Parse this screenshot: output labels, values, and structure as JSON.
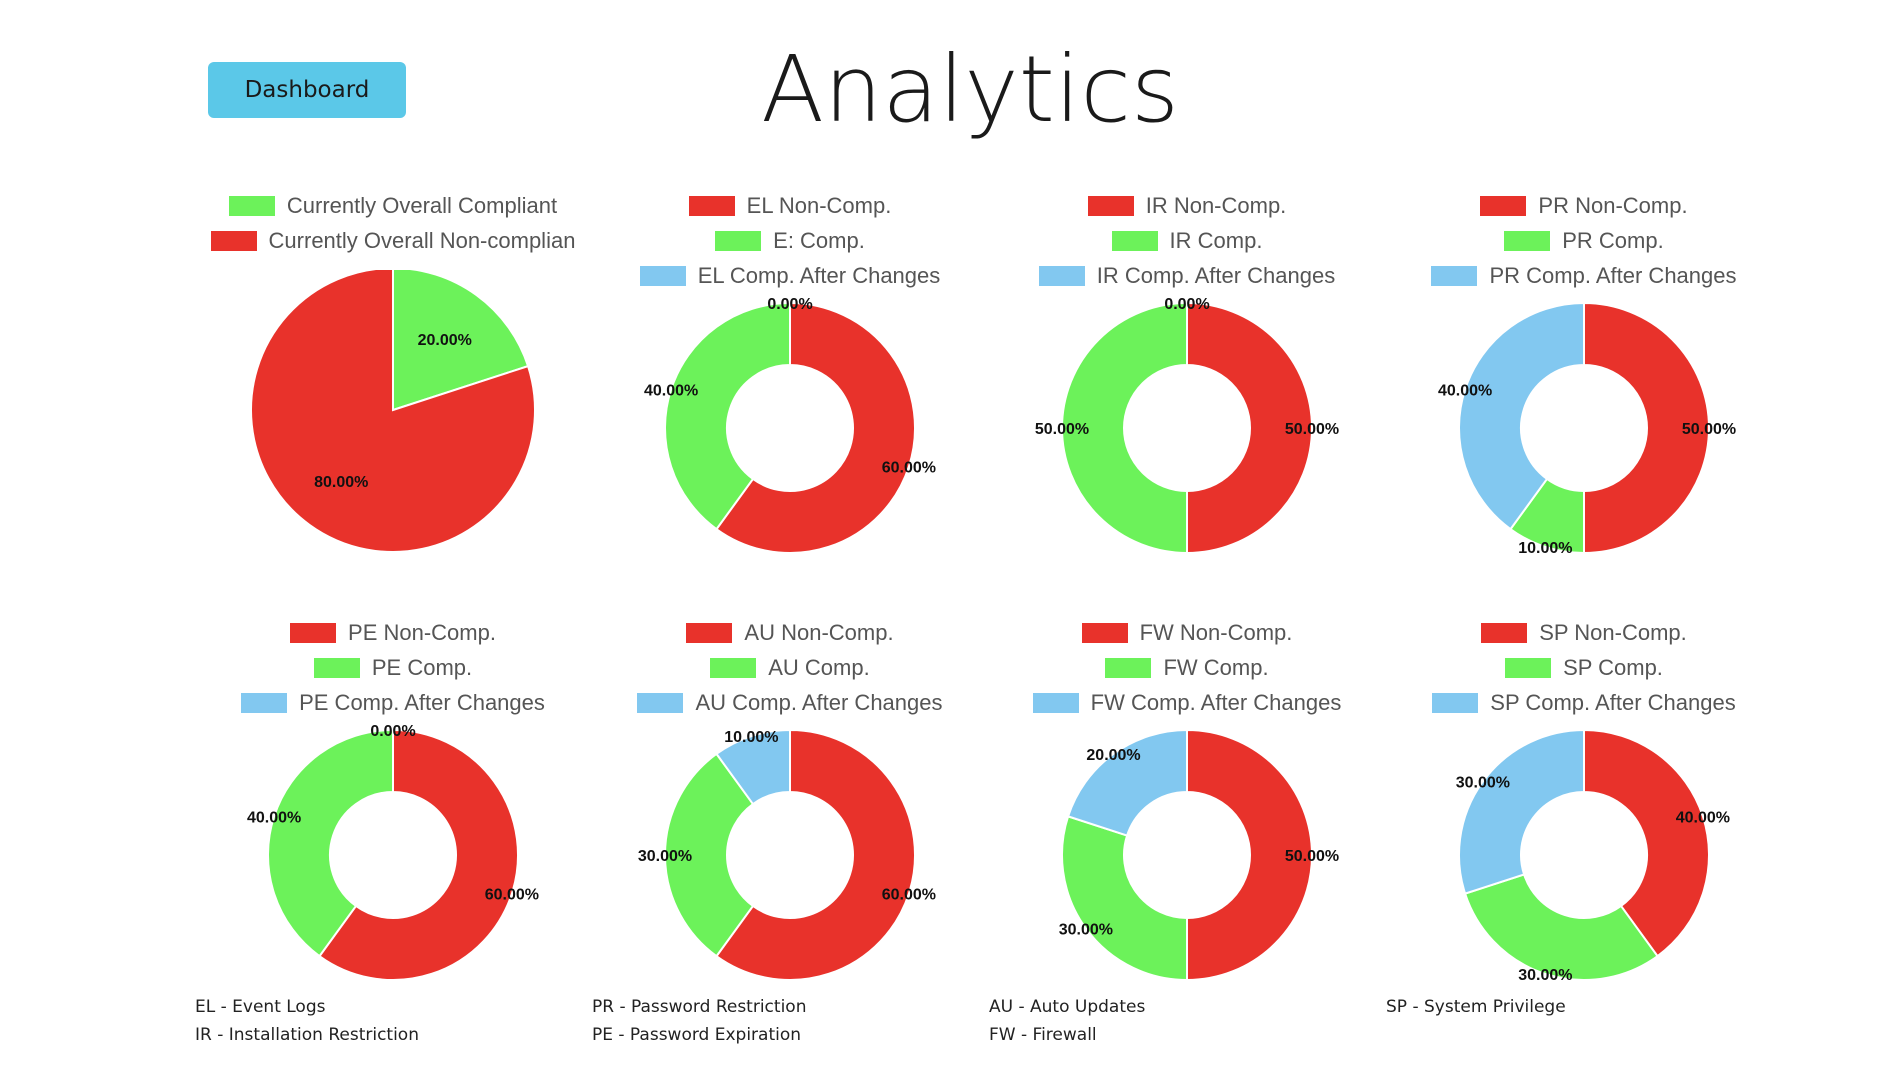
{
  "header": {
    "dashboard_label": "Dashboard",
    "title": "Analytics"
  },
  "colors": {
    "red": "#e8322b",
    "green": "#6cf25a",
    "blue": "#82c8f0"
  },
  "chart_data": [
    {
      "type": "pie",
      "legend": [
        "Currently Overall Compliant",
        "Currently Overall Non-complian"
      ],
      "legend_colors": [
        "#6cf25a",
        "#e8322b"
      ],
      "slices": [
        {
          "label": "Currently Overall Compliant",
          "value": 20,
          "color": "#6cf25a",
          "text": "20.00%"
        },
        {
          "label": "Currently Overall Non-complian",
          "value": 80,
          "color": "#e8322b",
          "text": "80.00%"
        }
      ]
    },
    {
      "type": "doughnut",
      "legend": [
        "EL Non-Comp.",
        "E: Comp.",
        "EL Comp. After Changes"
      ],
      "legend_colors": [
        "#e8322b",
        "#6cf25a",
        "#82c8f0"
      ],
      "slices": [
        {
          "label": "EL Non-Comp.",
          "value": 60,
          "color": "#e8322b",
          "text": "60.00%"
        },
        {
          "label": "E: Comp.",
          "value": 40,
          "color": "#6cf25a",
          "text": "40.00%"
        },
        {
          "label": "EL Comp. After Changes",
          "value": 0,
          "color": "#82c8f0",
          "text": "0.00%"
        }
      ]
    },
    {
      "type": "doughnut",
      "legend": [
        "IR Non-Comp.",
        "IR Comp.",
        "IR Comp. After Changes"
      ],
      "legend_colors": [
        "#e8322b",
        "#6cf25a",
        "#82c8f0"
      ],
      "slices": [
        {
          "label": "IR Non-Comp.",
          "value": 50,
          "color": "#e8322b",
          "text": "50.00%"
        },
        {
          "label": "IR Comp.",
          "value": 50,
          "color": "#6cf25a",
          "text": "50.00%"
        },
        {
          "label": "IR Comp. After Changes",
          "value": 0,
          "color": "#82c8f0",
          "text": "0.00%"
        }
      ]
    },
    {
      "type": "doughnut",
      "legend": [
        "PR Non-Comp.",
        "PR Comp.",
        "PR Comp. After Changes"
      ],
      "legend_colors": [
        "#e8322b",
        "#6cf25a",
        "#82c8f0"
      ],
      "slices": [
        {
          "label": "PR Non-Comp.",
          "value": 50,
          "color": "#e8322b",
          "text": "50.00%"
        },
        {
          "label": "PR Comp.",
          "value": 10,
          "color": "#6cf25a",
          "text": "10.00%"
        },
        {
          "label": "PR Comp. After Changes",
          "value": 40,
          "color": "#82c8f0",
          "text": "40.00%"
        }
      ]
    },
    {
      "type": "doughnut",
      "legend": [
        "PE Non-Comp.",
        "PE Comp.",
        "PE Comp. After Changes"
      ],
      "legend_colors": [
        "#e8322b",
        "#6cf25a",
        "#82c8f0"
      ],
      "slices": [
        {
          "label": "PE Non-Comp.",
          "value": 60,
          "color": "#e8322b",
          "text": "60.00%"
        },
        {
          "label": "PE Comp.",
          "value": 40,
          "color": "#6cf25a",
          "text": "40.00%"
        },
        {
          "label": "PE Comp. After Changes",
          "value": 0,
          "color": "#82c8f0",
          "text": "0.00%"
        }
      ]
    },
    {
      "type": "doughnut",
      "legend": [
        "AU Non-Comp.",
        "AU Comp.",
        "AU Comp. After Changes"
      ],
      "legend_colors": [
        "#e8322b",
        "#6cf25a",
        "#82c8f0"
      ],
      "slices": [
        {
          "label": "AU Non-Comp.",
          "value": 60,
          "color": "#e8322b",
          "text": "60.00%"
        },
        {
          "label": "AU Comp.",
          "value": 30,
          "color": "#6cf25a",
          "text": "30.00%"
        },
        {
          "label": "AU Comp. After Changes",
          "value": 10,
          "color": "#82c8f0",
          "text": "10.00%"
        }
      ]
    },
    {
      "type": "doughnut",
      "legend": [
        "FW Non-Comp.",
        "FW Comp.",
        "FW Comp. After Changes"
      ],
      "legend_colors": [
        "#e8322b",
        "#6cf25a",
        "#82c8f0"
      ],
      "slices": [
        {
          "label": "FW Non-Comp.",
          "value": 50,
          "color": "#e8322b",
          "text": "50.00%"
        },
        {
          "label": "FW Comp.",
          "value": 30,
          "color": "#6cf25a",
          "text": "30.00%"
        },
        {
          "label": "FW Comp. After Changes",
          "value": 20,
          "color": "#82c8f0",
          "text": "20.00%"
        }
      ]
    },
    {
      "type": "doughnut",
      "legend": [
        "SP Non-Comp.",
        "SP Comp.",
        "SP Comp. After Changes"
      ],
      "legend_colors": [
        "#e8322b",
        "#6cf25a",
        "#82c8f0"
      ],
      "slices": [
        {
          "label": "SP Non-Comp.",
          "value": 40,
          "color": "#e8322b",
          "text": "40.00%"
        },
        {
          "label": "SP Comp.",
          "value": 30,
          "color": "#6cf25a",
          "text": "30.00%"
        },
        {
          "label": "SP Comp. After Changes",
          "value": 30,
          "color": "#82c8f0",
          "text": "30.00%"
        }
      ]
    }
  ],
  "footnotes": [
    [
      "EL - Event Logs",
      "IR - Installation Restriction"
    ],
    [
      "PR - Password Restriction",
      "PE - Password Expiration"
    ],
    [
      "AU - Auto Updates",
      "FW - Firewall"
    ],
    [
      "SP - System Privilege"
    ]
  ]
}
